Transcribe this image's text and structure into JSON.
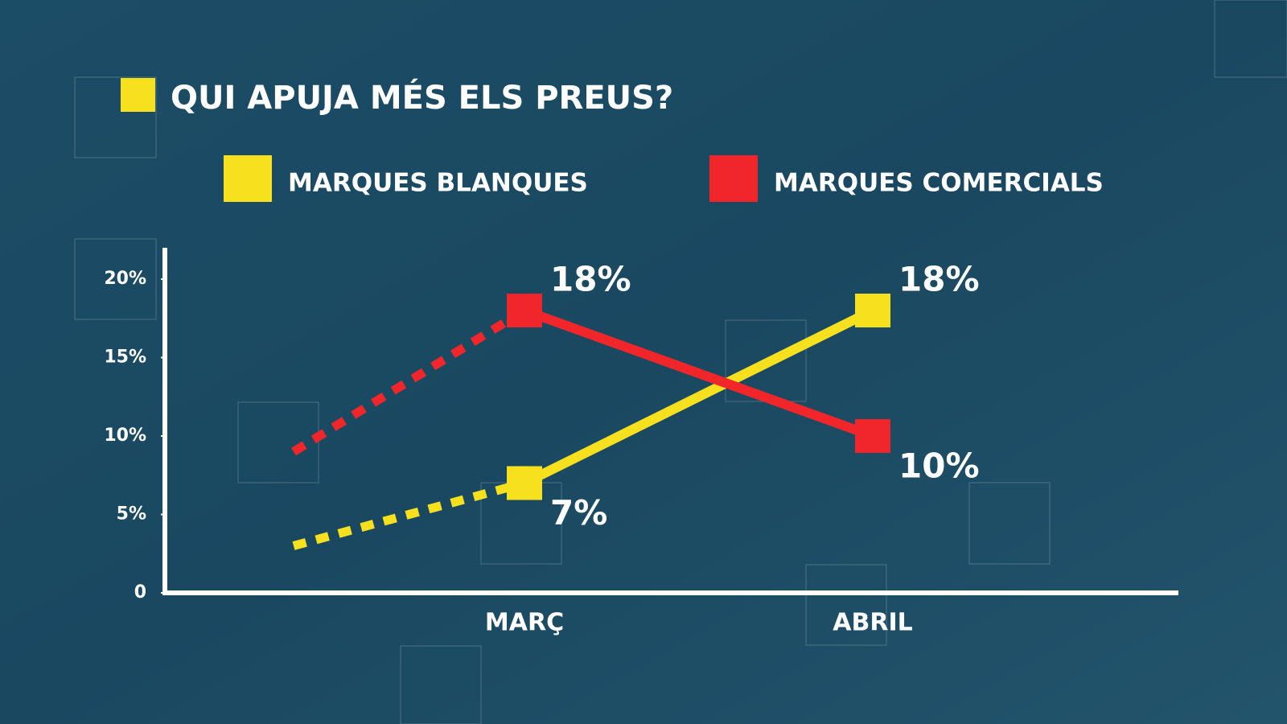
{
  "chart_data": {
    "type": "line",
    "title": "QUI APUJA MÉS ELS PREUS?",
    "categories": [
      null,
      "MARÇ",
      "ABRIL"
    ],
    "series": [
      {
        "name": "MARQUES BLANQUES",
        "color": "#f7e11e",
        "values": [
          3,
          7,
          18
        ],
        "value_labels": [
          null,
          "7%",
          "18%"
        ]
      },
      {
        "name": "MARQUES COMERCIALS",
        "color": "#f0262a",
        "values": [
          9,
          18,
          10
        ],
        "value_labels": [
          null,
          "18%",
          "10%"
        ]
      }
    ],
    "ylim": [
      0,
      22
    ],
    "yticks": [
      0,
      {
        "value": 5,
        "label": "5%"
      },
      {
        "value": 10,
        "label": "10%"
      },
      {
        "value": 15,
        "label": "15%"
      },
      {
        "value": 20,
        "label": "20%"
      }
    ]
  }
}
